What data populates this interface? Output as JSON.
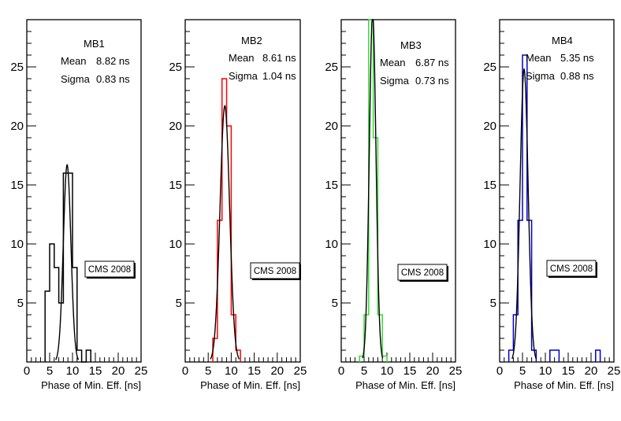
{
  "chart_data": [
    {
      "type": "bar",
      "title": "MB1",
      "xlabel": "Phase of Min. Eff. [ns]",
      "ylabel": "",
      "xlim": [
        0,
        25
      ],
      "ylim": [
        0,
        29
      ],
      "x_ticks": [
        "0",
        "5",
        "10",
        "15",
        "20",
        "25"
      ],
      "y_ticks": [
        "5",
        "10",
        "15",
        "20",
        "25"
      ],
      "bin_width": 1,
      "bins": [
        [
          4,
          6
        ],
        [
          5,
          10
        ],
        [
          6,
          8
        ],
        [
          7,
          5
        ],
        [
          8,
          16
        ],
        [
          9,
          16
        ],
        [
          10,
          8
        ],
        [
          11,
          1
        ],
        [
          12,
          0
        ],
        [
          13,
          1
        ]
      ],
      "hist_color": "#000000",
      "fit": {
        "mean": 8.82,
        "sigma": 0.83,
        "peak": 16.7
      },
      "stats": {
        "title": "MB1",
        "mean_label": "Mean",
        "mean_value": "8.82 ns",
        "sigma_label": "Sigma",
        "sigma_value": "0.83 ns"
      },
      "annotation": "CMS 2008"
    },
    {
      "type": "bar",
      "title": "MB2",
      "xlabel": "Phase of Min. Eff. [ns]",
      "ylabel": "",
      "xlim": [
        0,
        25
      ],
      "ylim": [
        0,
        29
      ],
      "x_ticks": [
        "0",
        "5",
        "10",
        "15",
        "20",
        "25"
      ],
      "y_ticks": [
        "5",
        "10",
        "15",
        "20",
        "25"
      ],
      "bin_width": 1,
      "bins": [
        [
          6,
          2
        ],
        [
          7,
          12
        ],
        [
          8,
          24
        ],
        [
          9,
          20
        ],
        [
          10,
          4
        ],
        [
          11,
          1
        ]
      ],
      "hist_color": "#ff0000",
      "fit": {
        "mean": 8.61,
        "sigma": 1.04,
        "peak": 21.7
      },
      "stats": {
        "title": "MB2",
        "mean_label": "Mean",
        "mean_value": "8.61 ns",
        "sigma_label": "Sigma",
        "sigma_value": "1.04 ns"
      },
      "annotation": "CMS 2008"
    },
    {
      "type": "bar",
      "title": "MB3",
      "xlabel": "Phase of Min. Eff. [ns]",
      "ylabel": "",
      "xlim": [
        0,
        25
      ],
      "ylim": [
        0,
        29
      ],
      "x_ticks": [
        "0",
        "5",
        "10",
        "15",
        "20",
        "25"
      ],
      "y_ticks": [
        "5",
        "10",
        "15",
        "20",
        "25"
      ],
      "bin_width": 1,
      "bins": [
        [
          4,
          0.5
        ],
        [
          5,
          4
        ],
        [
          6,
          29
        ],
        [
          7,
          19
        ],
        [
          8,
          4
        ],
        [
          9,
          0.5
        ]
      ],
      "hist_color": "#33dd33",
      "fit": {
        "mean": 6.87,
        "sigma": 0.73,
        "peak": 29.5
      },
      "stats": {
        "title": "MB3",
        "mean_label": "Mean",
        "mean_value": "6.87 ns",
        "sigma_label": "Sigma",
        "sigma_value": "0.73 ns"
      },
      "annotation": "CMS 2008"
    },
    {
      "type": "bar",
      "title": "MB4",
      "xlabel": "Phase of Min. Eff. [ns]",
      "ylabel": "",
      "xlim": [
        0,
        25
      ],
      "ylim": [
        0,
        29
      ],
      "x_ticks": [
        "0",
        "5",
        "10",
        "15",
        "20",
        "25"
      ],
      "y_ticks": [
        "5",
        "10",
        "15",
        "20",
        "25"
      ],
      "bin_width": 1,
      "bins": [
        [
          2,
          1
        ],
        [
          3,
          4
        ],
        [
          4,
          12
        ],
        [
          5,
          26
        ],
        [
          6,
          12
        ],
        [
          7,
          1
        ],
        [
          11,
          1
        ],
        [
          12,
          1
        ],
        [
          21,
          1
        ]
      ],
      "hist_color": "#0000cc",
      "fit": {
        "mean": 5.35,
        "sigma": 0.88,
        "peak": 24.8
      },
      "stats": {
        "title": "MB4",
        "mean_label": "Mean",
        "mean_value": "5.35 ns",
        "sigma_label": "Sigma",
        "sigma_value": "0.88 ns"
      },
      "annotation": "CMS 2008"
    }
  ]
}
